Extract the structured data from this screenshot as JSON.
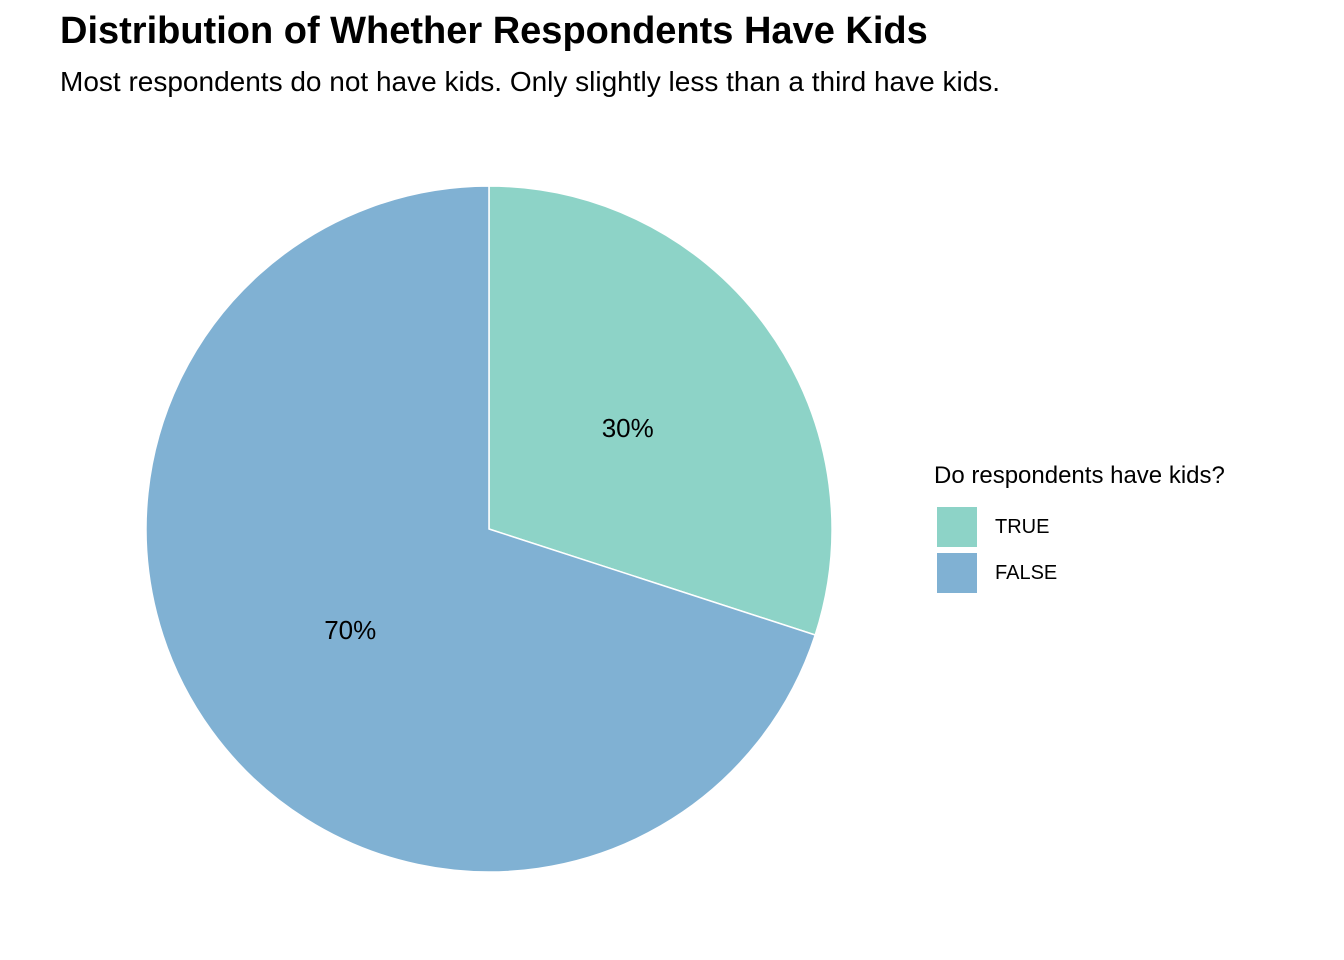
{
  "title": "Distribution of Whether Respondents Have Kids",
  "subtitle": "Most respondents do not have kids. Only slightly less than a third have kids.",
  "chart_data": {
    "type": "pie",
    "title": "Distribution of Whether Respondents Have Kids",
    "subtitle": "Most respondents do not have kids. Only slightly less than a third have kids.",
    "legend_title": "Do respondents have kids?",
    "legend_position": "right",
    "slices": [
      {
        "label": "TRUE",
        "value": 30,
        "display": "30%",
        "color": "#8dd3c7"
      },
      {
        "label": "FALSE",
        "value": 70,
        "display": "70%",
        "color": "#80b1d3"
      }
    ]
  }
}
